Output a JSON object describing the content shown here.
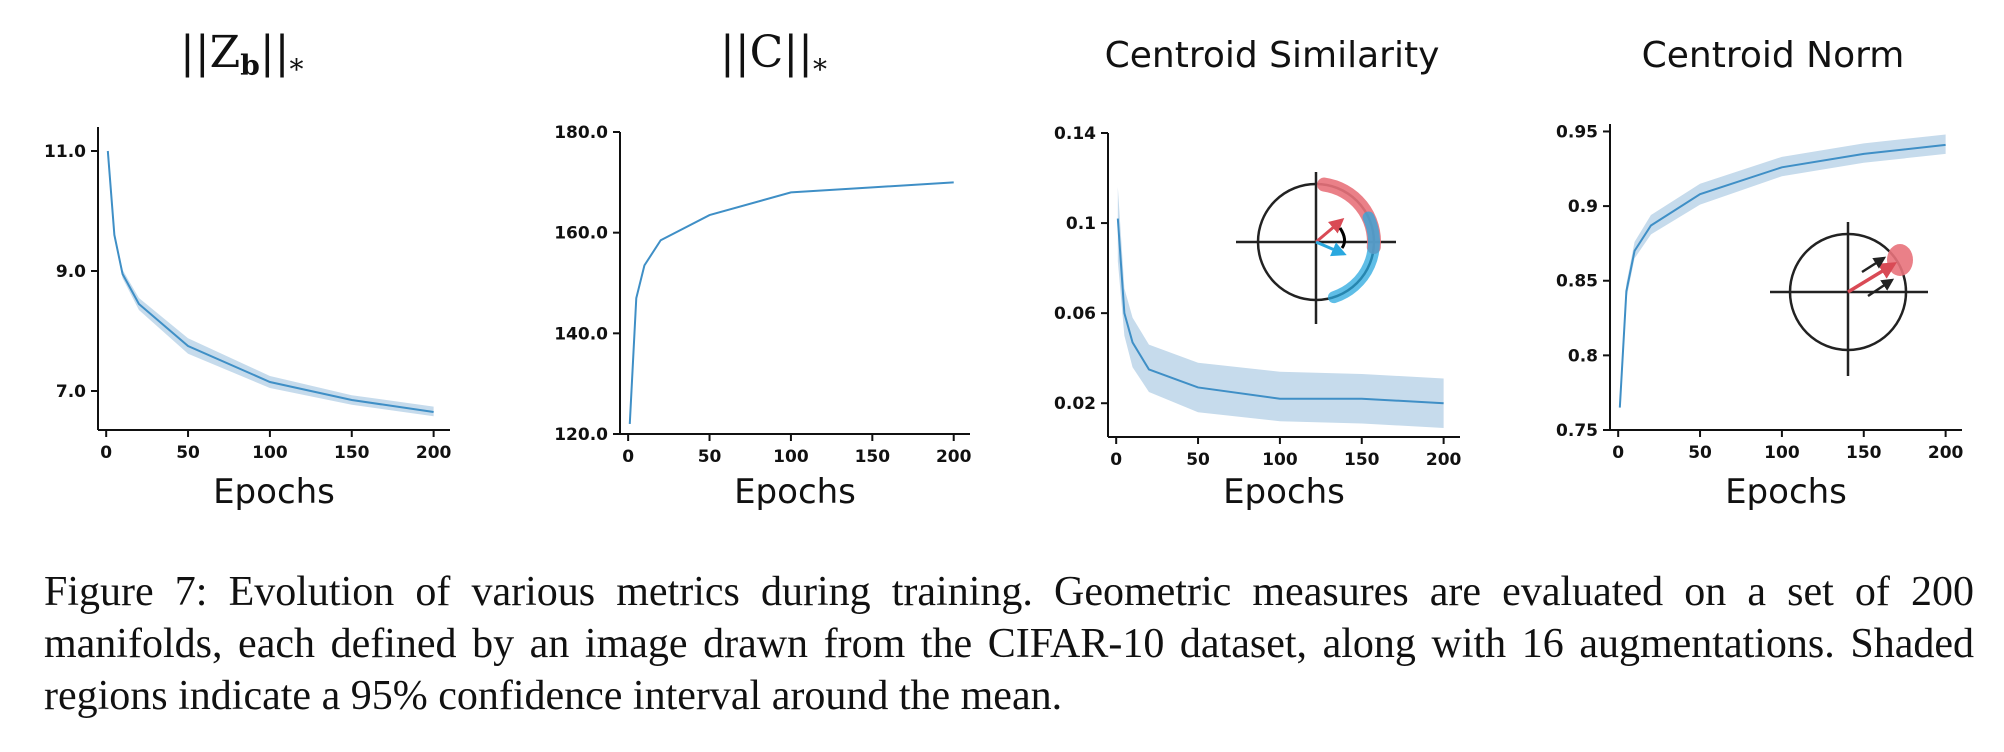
{
  "chart_data": [
    {
      "type": "line",
      "title": "||Z_b||_*",
      "xlabel": "Epochs",
      "ylabel": "",
      "x": [
        1,
        5,
        10,
        20,
        50,
        100,
        150,
        200
      ],
      "series": [
        {
          "values": [
            11.0,
            9.6,
            8.95,
            8.45,
            7.75,
            7.15,
            6.85,
            6.65
          ],
          "ci_low": [
            11.0,
            9.55,
            8.88,
            8.35,
            7.62,
            7.05,
            6.77,
            6.58
          ],
          "ci_high": [
            11.0,
            9.65,
            9.02,
            8.55,
            7.88,
            7.25,
            6.93,
            6.74
          ]
        }
      ],
      "xlim": [
        -5,
        210
      ],
      "ylim": [
        6.35,
        11.4
      ],
      "xticks": [
        0,
        50,
        100,
        150,
        200
      ],
      "xtick_labels": [
        "0",
        "50",
        "100",
        "150",
        "200"
      ],
      "yticks": [
        7.0,
        9.0,
        11.0
      ],
      "ytick_labels": [
        "7.0",
        "9.0",
        "11.0"
      ],
      "color": "#3f8fc6",
      "band_color": "#c6dbec",
      "grid": false
    },
    {
      "type": "line",
      "title": "||C||_*",
      "xlabel": "Epochs",
      "ylabel": "",
      "x": [
        1,
        5,
        10,
        20,
        50,
        100,
        150,
        200
      ],
      "series": [
        {
          "values": [
            122.0,
            147.0,
            153.5,
            158.5,
            163.5,
            168.0,
            169.0,
            170.0
          ]
        }
      ],
      "xlim": [
        -5,
        210
      ],
      "ylim": [
        120.0,
        180.0
      ],
      "xticks": [
        0,
        50,
        100,
        150,
        200
      ],
      "xtick_labels": [
        "0",
        "50",
        "100",
        "150",
        "200"
      ],
      "yticks": [
        120.0,
        140.0,
        160.0,
        180.0
      ],
      "ytick_labels": [
        "120.0",
        "140.0",
        "160.0",
        "180.0"
      ],
      "color": "#3f8fc6",
      "band_color": "#c6dbec",
      "grid": false
    },
    {
      "type": "line",
      "title": "Centroid Similarity",
      "xlabel": "Epochs",
      "ylabel": "",
      "x": [
        1,
        5,
        10,
        20,
        50,
        100,
        150,
        200
      ],
      "series": [
        {
          "values": [
            0.102,
            0.06,
            0.047,
            0.035,
            0.027,
            0.022,
            0.022,
            0.02
          ],
          "ci_low": [
            0.083,
            0.05,
            0.036,
            0.025,
            0.016,
            0.012,
            0.011,
            0.009
          ],
          "ci_high": [
            0.116,
            0.071,
            0.058,
            0.046,
            0.038,
            0.034,
            0.033,
            0.031
          ]
        }
      ],
      "xlim": [
        -5,
        210
      ],
      "ylim": [
        0.005,
        0.14
      ],
      "xticks": [
        0,
        50,
        100,
        150,
        200
      ],
      "xtick_labels": [
        "0",
        "50",
        "100",
        "150",
        "200"
      ],
      "yticks": [
        0.02,
        0.06,
        0.1,
        0.14
      ],
      "ytick_labels": [
        "0.02",
        "0.06",
        "0.1",
        "0.14"
      ],
      "color": "#3f8fc6",
      "band_color": "#c6dbec",
      "grid": false,
      "inset": "similarity"
    },
    {
      "type": "line",
      "title": "Centroid Norm",
      "xlabel": "Epochs",
      "ylabel": "",
      "x": [
        1,
        5,
        10,
        20,
        50,
        100,
        150,
        200
      ],
      "series": [
        {
          "values": [
            0.765,
            0.843,
            0.87,
            0.887,
            0.908,
            0.926,
            0.935,
            0.941
          ],
          "ci_low": [
            0.763,
            0.838,
            0.865,
            0.881,
            0.901,
            0.92,
            0.929,
            0.935
          ],
          "ci_high": [
            0.767,
            0.848,
            0.876,
            0.894,
            0.915,
            0.933,
            0.942,
            0.948
          ]
        }
      ],
      "xlim": [
        -5,
        210
      ],
      "ylim": [
        0.75,
        0.955
      ],
      "xticks": [
        0,
        50,
        100,
        150,
        200
      ],
      "xtick_labels": [
        "0",
        "50",
        "100",
        "150",
        "200"
      ],
      "yticks": [
        0.75,
        0.8,
        0.85,
        0.9,
        0.95
      ],
      "ytick_labels": [
        "0.75",
        "0.8",
        "0.85",
        "0.9",
        "0.95"
      ],
      "color": "#3f8fc6",
      "band_color": "#c6dbec",
      "grid": false,
      "inset": "norm"
    }
  ],
  "titles": {
    "panel1": {
      "main": "||Z",
      "sub": "b",
      "end": "||",
      "star": "*"
    },
    "panel2": {
      "main": "||C||",
      "star": "*"
    }
  },
  "caption": "Figure 7: Evolution of various metrics during training. Geometric measures are evaluated on a set of 200 manifolds, each defined by an image drawn from the CIFAR-10 dataset, along with 16 augmentations. Shaded regions indicate a 95% confidence interval around the mean.",
  "colors": {
    "red": "#d94a55",
    "red_band": "#e8727b",
    "blue": "#2aa8df",
    "dark": "#222222"
  }
}
